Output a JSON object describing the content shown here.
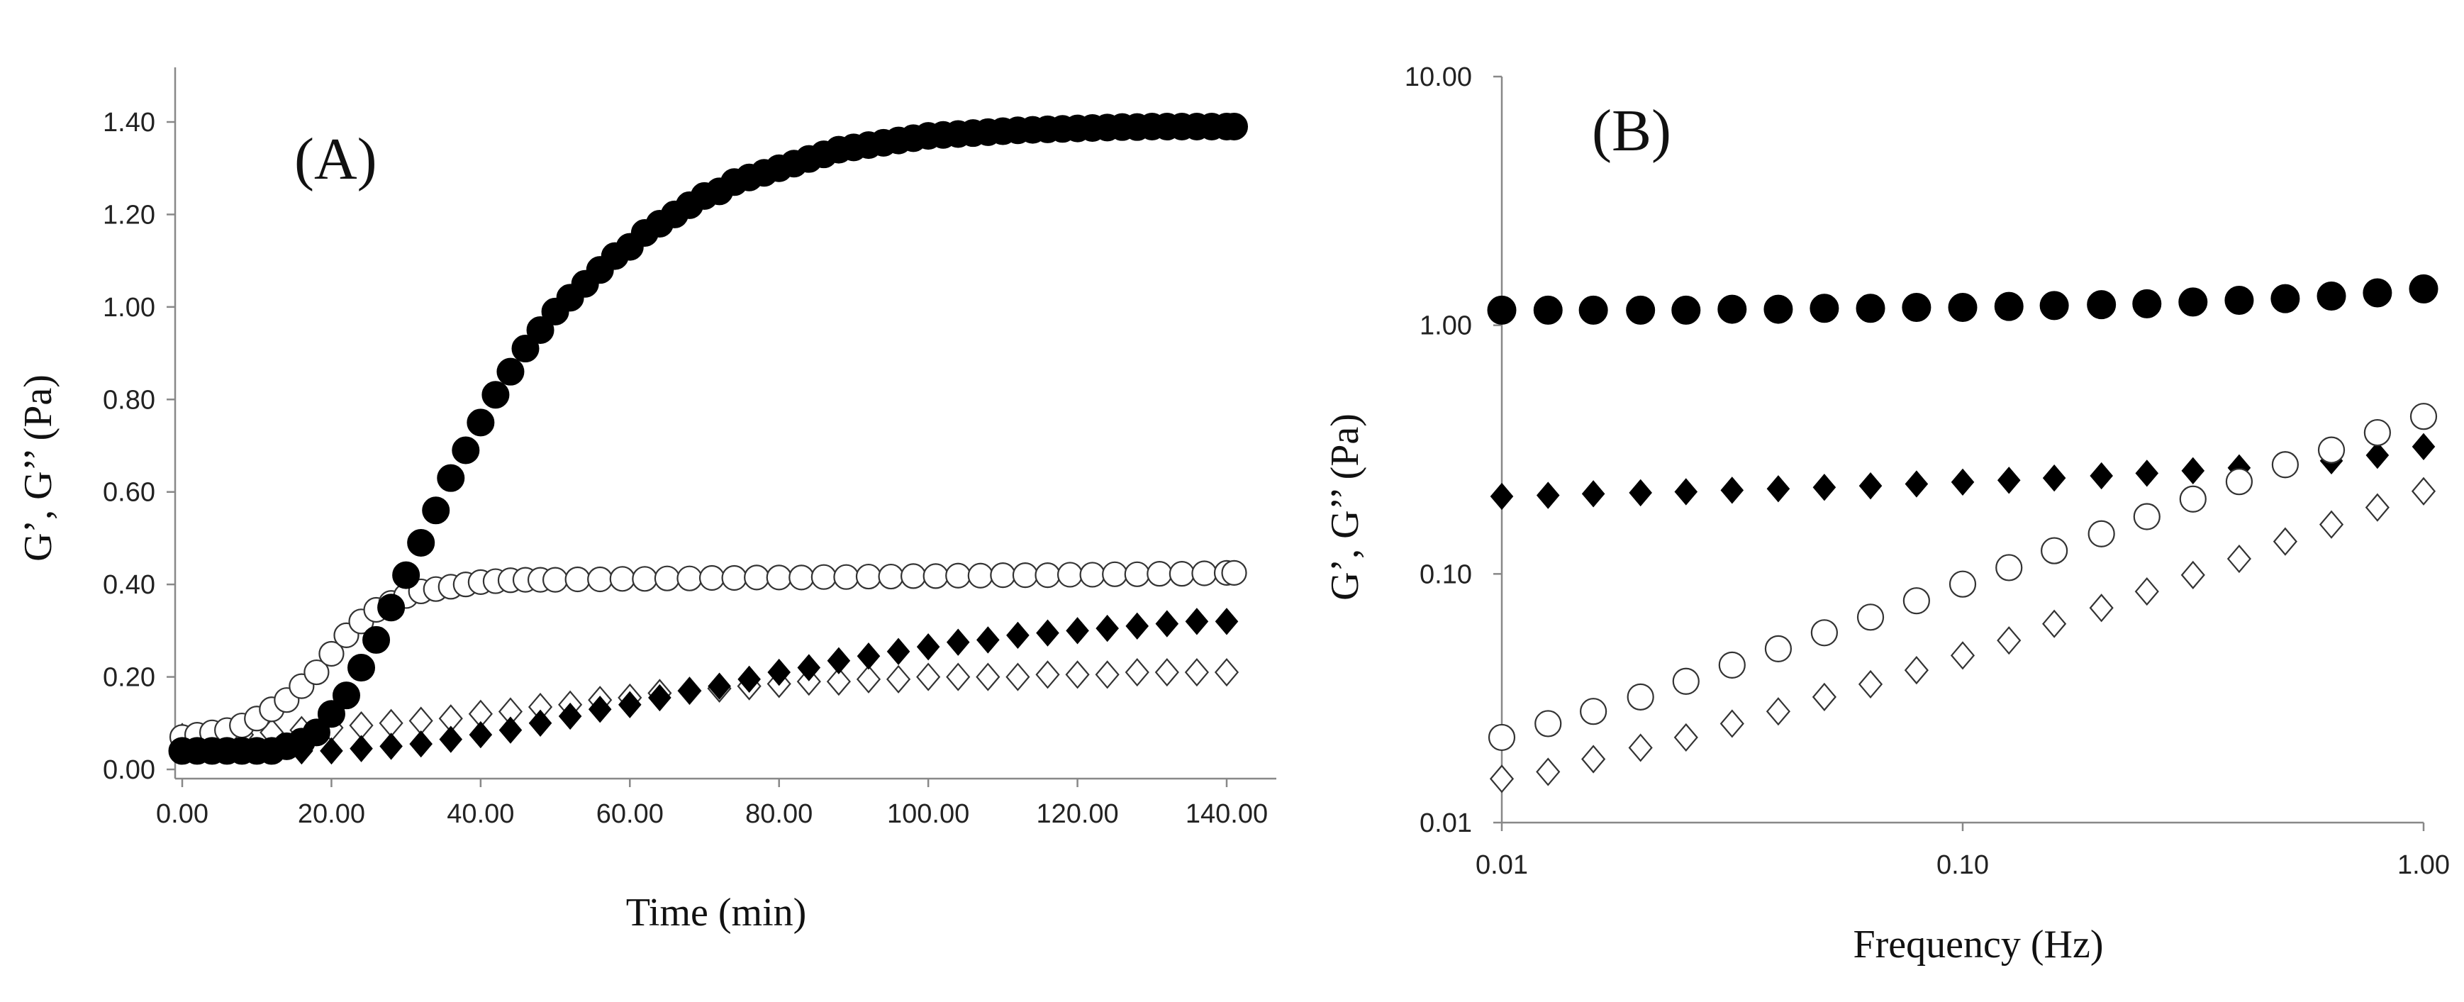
{
  "chart_data": [
    {
      "type": "scatter",
      "panel_label": "(A)",
      "xlabel": "Time (min)",
      "ylabel": "G’, G’’ (Pa)",
      "xlim": [
        0,
        150
      ],
      "ylim": [
        0,
        1.5
      ],
      "x_ticks": [
        "0.00",
        "20.00",
        "40.00",
        "60.00",
        "80.00",
        "100.00",
        "120.00",
        "140.00"
      ],
      "y_ticks": [
        "0.00",
        "0.20",
        "0.40",
        "0.60",
        "0.80",
        "1.00",
        "1.20",
        "1.40"
      ],
      "grid": false,
      "legend": "none",
      "series": [
        {
          "marker": "filled-circle",
          "x": [
            0,
            2,
            4,
            6,
            8,
            10,
            12,
            14,
            16,
            18,
            20,
            22,
            24,
            26,
            28,
            30,
            32,
            34,
            36,
            38,
            40,
            42,
            44,
            46,
            48,
            50,
            52,
            54,
            56,
            58,
            60,
            62,
            64,
            66,
            68,
            70,
            72,
            74,
            76,
            78,
            80,
            82,
            84,
            86,
            88,
            90,
            92,
            94,
            96,
            98,
            100,
            102,
            104,
            106,
            108,
            110,
            112,
            114,
            116,
            118,
            120,
            122,
            124,
            126,
            128,
            130,
            132,
            134,
            136,
            138,
            140,
            141
          ],
          "y": [
            0.04,
            0.04,
            0.04,
            0.04,
            0.04,
            0.04,
            0.04,
            0.05,
            0.06,
            0.08,
            0.12,
            0.16,
            0.22,
            0.28,
            0.35,
            0.42,
            0.49,
            0.56,
            0.63,
            0.69,
            0.75,
            0.81,
            0.86,
            0.91,
            0.95,
            0.99,
            1.02,
            1.05,
            1.08,
            1.11,
            1.13,
            1.16,
            1.18,
            1.2,
            1.22,
            1.24,
            1.25,
            1.27,
            1.28,
            1.29,
            1.3,
            1.31,
            1.32,
            1.33,
            1.34,
            1.345,
            1.35,
            1.355,
            1.36,
            1.365,
            1.37,
            1.372,
            1.374,
            1.376,
            1.378,
            1.38,
            1.382,
            1.383,
            1.384,
            1.385,
            1.386,
            1.387,
            1.388,
            1.389,
            1.389,
            1.39,
            1.39,
            1.39,
            1.39,
            1.39,
            1.39,
            1.39
          ]
        },
        {
          "marker": "open-circle",
          "x": [
            0,
            2,
            4,
            6,
            8,
            10,
            12,
            14,
            16,
            18,
            20,
            22,
            24,
            26,
            28,
            30,
            32,
            34,
            36,
            38,
            40,
            42,
            44,
            46,
            48,
            50,
            53,
            56,
            59,
            62,
            65,
            68,
            71,
            74,
            77,
            80,
            83,
            86,
            89,
            92,
            95,
            98,
            101,
            104,
            107,
            110,
            113,
            116,
            119,
            122,
            125,
            128,
            131,
            134,
            137,
            140,
            141
          ],
          "y": [
            0.07,
            0.075,
            0.08,
            0.085,
            0.095,
            0.11,
            0.13,
            0.15,
            0.18,
            0.21,
            0.25,
            0.29,
            0.32,
            0.345,
            0.36,
            0.375,
            0.385,
            0.39,
            0.395,
            0.4,
            0.405,
            0.407,
            0.409,
            0.41,
            0.41,
            0.41,
            0.411,
            0.411,
            0.412,
            0.412,
            0.413,
            0.413,
            0.414,
            0.414,
            0.415,
            0.415,
            0.415,
            0.416,
            0.416,
            0.417,
            0.417,
            0.418,
            0.418,
            0.419,
            0.419,
            0.42,
            0.42,
            0.42,
            0.421,
            0.421,
            0.422,
            0.422,
            0.423,
            0.423,
            0.424,
            0.425,
            0.425
          ]
        },
        {
          "marker": "filled-diamond",
          "x": [
            0,
            4,
            8,
            12,
            16,
            20,
            24,
            28,
            32,
            36,
            40,
            44,
            48,
            52,
            56,
            60,
            64,
            68,
            72,
            76,
            80,
            84,
            88,
            92,
            96,
            100,
            104,
            108,
            112,
            116,
            120,
            124,
            128,
            132,
            136,
            140
          ],
          "y": [
            0.04,
            0.04,
            0.04,
            0.04,
            0.04,
            0.04,
            0.045,
            0.05,
            0.055,
            0.065,
            0.075,
            0.085,
            0.1,
            0.115,
            0.13,
            0.14,
            0.155,
            0.17,
            0.18,
            0.195,
            0.21,
            0.22,
            0.235,
            0.245,
            0.255,
            0.265,
            0.275,
            0.28,
            0.29,
            0.295,
            0.3,
            0.305,
            0.31,
            0.315,
            0.32,
            0.32
          ]
        },
        {
          "marker": "open-diamond",
          "x": [
            0,
            4,
            8,
            12,
            16,
            20,
            24,
            28,
            32,
            36,
            40,
            44,
            48,
            52,
            56,
            60,
            64,
            68,
            72,
            76,
            80,
            84,
            88,
            92,
            96,
            100,
            104,
            108,
            112,
            116,
            120,
            124,
            128,
            132,
            136,
            140
          ],
          "y": [
            0.07,
            0.075,
            0.075,
            0.08,
            0.085,
            0.09,
            0.095,
            0.1,
            0.105,
            0.11,
            0.12,
            0.125,
            0.135,
            0.14,
            0.15,
            0.155,
            0.165,
            0.17,
            0.175,
            0.18,
            0.185,
            0.19,
            0.19,
            0.195,
            0.195,
            0.2,
            0.2,
            0.2,
            0.2,
            0.205,
            0.205,
            0.205,
            0.21,
            0.21,
            0.21,
            0.21
          ]
        }
      ]
    },
    {
      "type": "scatter",
      "panel_label": "(B)",
      "xlabel": "Frequency (Hz)",
      "ylabel": "G’, G’’ (Pa)",
      "xscale": "log",
      "yscale": "log",
      "xlim": [
        0.01,
        1
      ],
      "ylim": [
        0.01,
        10
      ],
      "x_ticks": [
        "0.01",
        "0.10",
        "1.00"
      ],
      "y_ticks": [
        "0.01",
        "0.10",
        "1.00",
        "10.00"
      ],
      "grid": false,
      "legend": "none",
      "x": [
        0.01,
        0.0126,
        0.0158,
        0.02,
        0.0251,
        0.0316,
        0.0398,
        0.0501,
        0.0631,
        0.0794,
        0.1,
        0.126,
        0.158,
        0.2,
        0.251,
        0.316,
        0.398,
        0.501,
        0.631,
        0.794,
        1.0
      ],
      "series": [
        {
          "marker": "filled-circle",
          "y": [
            1.15,
            1.15,
            1.15,
            1.15,
            1.15,
            1.16,
            1.16,
            1.17,
            1.17,
            1.18,
            1.18,
            1.19,
            1.2,
            1.21,
            1.22,
            1.24,
            1.26,
            1.28,
            1.31,
            1.35,
            1.4
          ]
        },
        {
          "marker": "filled-diamond",
          "y": [
            0.205,
            0.207,
            0.21,
            0.212,
            0.214,
            0.217,
            0.22,
            0.223,
            0.226,
            0.23,
            0.234,
            0.238,
            0.243,
            0.248,
            0.254,
            0.26,
            0.267,
            0.275,
            0.285,
            0.3,
            0.325
          ]
        },
        {
          "marker": "open-circle",
          "y": [
            0.022,
            0.025,
            0.028,
            0.032,
            0.037,
            0.043,
            0.05,
            0.058,
            0.067,
            0.078,
            0.091,
            0.106,
            0.124,
            0.145,
            0.17,
            0.2,
            0.235,
            0.275,
            0.315,
            0.37,
            0.43
          ]
        },
        {
          "marker": "open-diamond",
          "y": [
            0.015,
            0.016,
            0.018,
            0.02,
            0.022,
            0.025,
            0.028,
            0.032,
            0.036,
            0.041,
            0.047,
            0.054,
            0.063,
            0.073,
            0.085,
            0.099,
            0.115,
            0.135,
            0.158,
            0.185,
            0.215
          ]
        }
      ]
    }
  ]
}
